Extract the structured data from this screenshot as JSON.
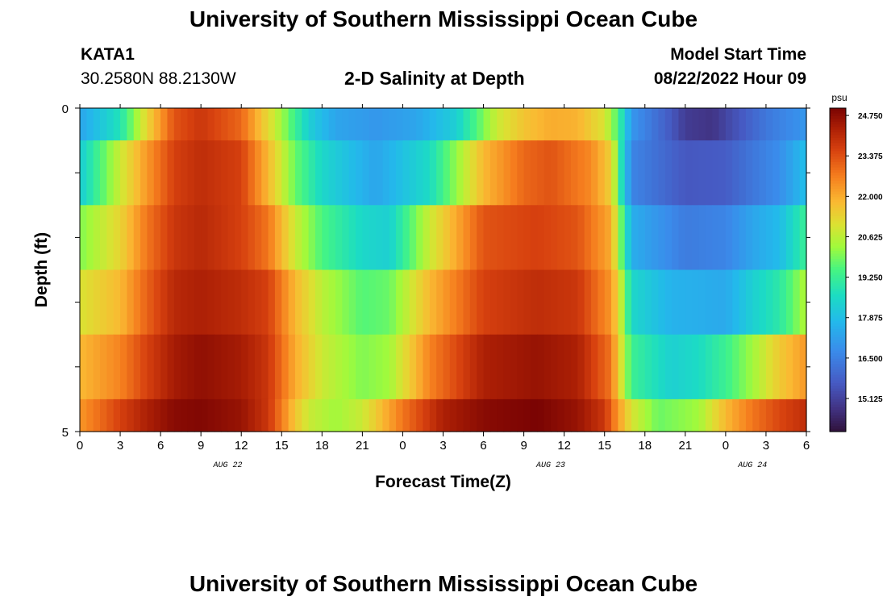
{
  "page": {
    "title_top": "University of Southern Mississippi Ocean Cube",
    "title_bottom": "University of Southern Mississippi Ocean Cube",
    "station": "KATA1",
    "coords": "30.2580N  88.2130W",
    "plot_title": "2-D Salinity at Depth",
    "model_start_label": "Model Start Time",
    "model_start_value": "08/22/2022 Hour 09"
  },
  "chart_data": {
    "type": "heatmap",
    "title": "2-D Salinity at Depth",
    "xlabel": "Forecast Time(Z)",
    "ylabel": "Depth (ft)",
    "x_tick_labels": [
      "0",
      "3",
      "6",
      "9",
      "12",
      "15",
      "18",
      "21",
      "0",
      "3",
      "6",
      "9",
      "12",
      "15",
      "18",
      "21",
      "0",
      "3",
      "6"
    ],
    "date_labels": [
      {
        "label": "AUG 22",
        "hour_index": 11
      },
      {
        "label": "AUG 23",
        "hour_index": 35
      },
      {
        "label": "AUG 24",
        "hour_index": 50
      }
    ],
    "y_tick_labels": [
      {
        "value": 0,
        "label": "0"
      },
      {
        "value": 5,
        "label": "5"
      }
    ],
    "ylim": [
      0,
      5
    ],
    "colorbar": {
      "unit": "psu",
      "vmin": 14.0,
      "vmax": 25.0,
      "ticks": [
        "24.750",
        "23.375",
        "22.000",
        "20.625",
        "19.250",
        "17.875",
        "16.500",
        "15.125"
      ]
    },
    "hours_per_column": 0.5,
    "depth_rows_ft": [
      0,
      1,
      2,
      3,
      4,
      5
    ],
    "salinity_keypoints": [
      {
        "depth": 0,
        "points": [
          [
            0,
            17.3
          ],
          [
            3,
            18.8
          ],
          [
            5,
            21.3
          ],
          [
            7,
            23.3
          ],
          [
            9,
            23.8
          ],
          [
            12,
            23.0
          ],
          [
            15,
            20.3
          ],
          [
            17,
            18.3
          ],
          [
            19,
            17.3
          ],
          [
            22,
            17.0
          ],
          [
            25,
            17.3
          ],
          [
            28,
            18.3
          ],
          [
            31,
            20.8
          ],
          [
            33,
            21.6
          ],
          [
            35,
            22.0
          ],
          [
            37,
            21.9
          ],
          [
            39,
            21.0
          ],
          [
            40,
            19.5
          ],
          [
            41,
            17.0
          ],
          [
            44,
            15.6
          ],
          [
            45,
            15.0
          ],
          [
            47,
            14.8
          ],
          [
            48,
            15.2
          ],
          [
            51,
            16.3
          ],
          [
            54,
            17.0
          ]
        ]
      },
      {
        "depth": 1,
        "points": [
          [
            0,
            18.2
          ],
          [
            3,
            20.8
          ],
          [
            5,
            22.3
          ],
          [
            7,
            23.6
          ],
          [
            9,
            24.0
          ],
          [
            12,
            23.6
          ],
          [
            14,
            21.8
          ],
          [
            16,
            19.8
          ],
          [
            18,
            18.5
          ],
          [
            22,
            17.3
          ],
          [
            26,
            18.6
          ],
          [
            30,
            21.8
          ],
          [
            33,
            23.0
          ],
          [
            35,
            23.3
          ],
          [
            38,
            22.5
          ],
          [
            39.6,
            21.3
          ],
          [
            40,
            19.5
          ],
          [
            41,
            16.6
          ],
          [
            45,
            15.6
          ],
          [
            48,
            15.7
          ],
          [
            50,
            16.3
          ],
          [
            52,
            16.8
          ],
          [
            54,
            17.9
          ]
        ]
      },
      {
        "depth": 2,
        "points": [
          [
            0,
            20.0
          ],
          [
            3,
            21.3
          ],
          [
            5,
            22.8
          ],
          [
            7,
            23.8
          ],
          [
            9,
            24.1
          ],
          [
            12,
            23.6
          ],
          [
            14,
            22.8
          ],
          [
            16,
            20.8
          ],
          [
            18,
            19.5
          ],
          [
            21,
            18.5
          ],
          [
            23,
            18.3
          ],
          [
            26,
            20.8
          ],
          [
            30,
            23.3
          ],
          [
            34,
            23.6
          ],
          [
            37,
            23.3
          ],
          [
            39.5,
            22.0
          ],
          [
            40,
            20.5
          ],
          [
            41,
            17.5
          ],
          [
            45,
            16.4
          ],
          [
            48,
            16.6
          ],
          [
            50,
            17.3
          ],
          [
            52,
            17.8
          ],
          [
            54,
            19.3
          ]
        ]
      },
      {
        "depth": 3,
        "points": [
          [
            0,
            21.0
          ],
          [
            3,
            21.8
          ],
          [
            5,
            23.1
          ],
          [
            7,
            24.1
          ],
          [
            9,
            24.3
          ],
          [
            12,
            24.0
          ],
          [
            14,
            23.6
          ],
          [
            16,
            21.8
          ],
          [
            18,
            20.6
          ],
          [
            21,
            19.6
          ],
          [
            23,
            19.8
          ],
          [
            26,
            21.8
          ],
          [
            30,
            23.6
          ],
          [
            34,
            24.0
          ],
          [
            37,
            23.8
          ],
          [
            39.5,
            22.3
          ],
          [
            40,
            21.3
          ],
          [
            41,
            18.5
          ],
          [
            44,
            17.6
          ],
          [
            48,
            17.4
          ],
          [
            50,
            18.3
          ],
          [
            52,
            19.0
          ],
          [
            54,
            20.5
          ]
        ]
      },
      {
        "depth": 4,
        "points": [
          [
            0,
            21.8
          ],
          [
            3,
            22.6
          ],
          [
            5,
            23.6
          ],
          [
            7,
            24.4
          ],
          [
            9,
            24.7
          ],
          [
            12,
            24.4
          ],
          [
            14,
            23.8
          ],
          [
            16,
            22.0
          ],
          [
            18,
            20.8
          ],
          [
            21,
            20.0
          ],
          [
            23,
            20.3
          ],
          [
            26,
            22.6
          ],
          [
            30,
            24.3
          ],
          [
            34,
            24.6
          ],
          [
            37,
            24.3
          ],
          [
            39.5,
            22.8
          ],
          [
            40,
            21.5
          ],
          [
            41,
            19.3
          ],
          [
            44,
            18.3
          ],
          [
            46,
            18.6
          ],
          [
            48,
            19.3
          ],
          [
            50,
            20.3
          ],
          [
            52,
            21.5
          ],
          [
            54,
            22.3
          ]
        ]
      },
      {
        "depth": 5,
        "points": [
          [
            0,
            22.3
          ],
          [
            3,
            23.6
          ],
          [
            5,
            24.3
          ],
          [
            7,
            24.8
          ],
          [
            9,
            24.9
          ],
          [
            12,
            24.6
          ],
          [
            14,
            23.8
          ],
          [
            16,
            21.6
          ],
          [
            17,
            20.8
          ],
          [
            19,
            20.3
          ],
          [
            21,
            20.8
          ],
          [
            24,
            22.8
          ],
          [
            27,
            24.3
          ],
          [
            30,
            24.8
          ],
          [
            34,
            25.0
          ],
          [
            37,
            24.6
          ],
          [
            39,
            23.8
          ],
          [
            40,
            22.3
          ],
          [
            41,
            21.0
          ],
          [
            43,
            19.8
          ],
          [
            46,
            20.3
          ],
          [
            48,
            21.8
          ],
          [
            50,
            22.8
          ],
          [
            52,
            23.5
          ],
          [
            54,
            24.0
          ]
        ]
      }
    ]
  }
}
